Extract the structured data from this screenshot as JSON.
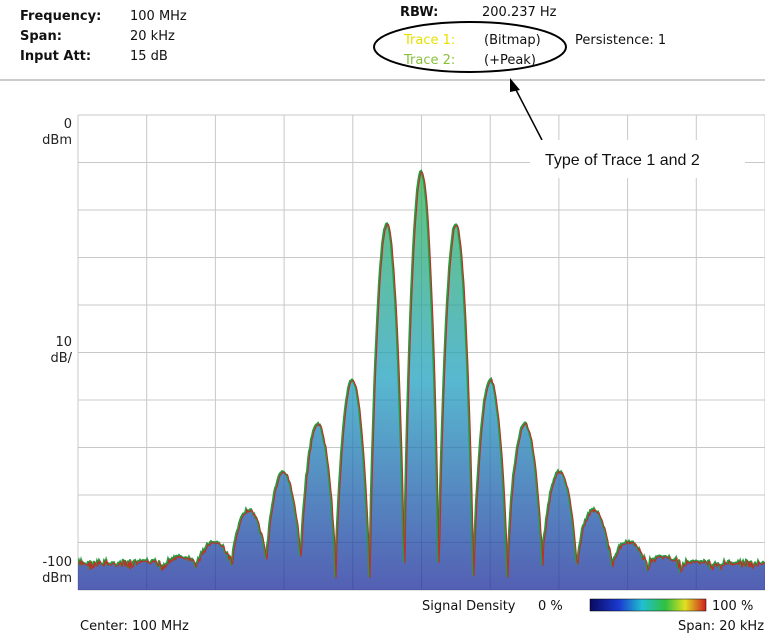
{
  "header": {
    "frequency": {
      "label": "Frequency:",
      "value": "100 MHz"
    },
    "span": {
      "label": "Span:",
      "value": "20 kHz"
    },
    "input_att": {
      "label": "Input Att:",
      "value": "15 dB"
    },
    "rbw": {
      "label": "RBW:",
      "value": "200.237 Hz"
    },
    "trace1": {
      "label": "Trace 1:",
      "value": "(Bitmap)"
    },
    "persistence": "Persistence: 1",
    "trace2": {
      "label": "Trace 2:",
      "value": "(+Peak)"
    }
  },
  "callout": "Type of Trace 1 and 2",
  "axis": {
    "top": [
      "0",
      "dBm"
    ],
    "scale": [
      "10",
      "dB/"
    ],
    "bottom": [
      "-100",
      "dBm"
    ]
  },
  "footer": {
    "density_label": "Signal Density",
    "density_min": "0 %",
    "density_max": "100 %",
    "center": "Center: 100 MHz",
    "span": "Span: 20 kHz"
  }
}
